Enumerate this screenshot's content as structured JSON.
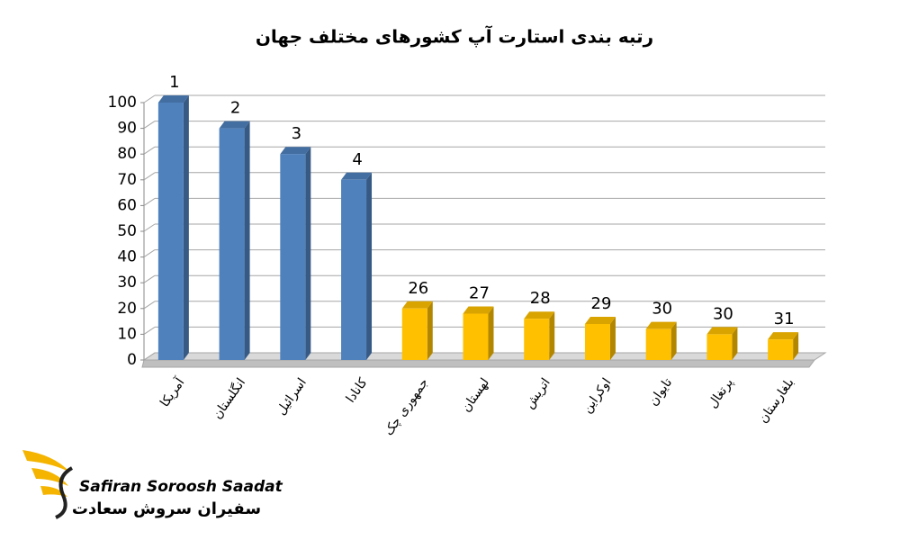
{
  "chart_data": {
    "type": "bar3d",
    "title": "رتبه بندی استارت آپ کشورهای مختلف جهان",
    "categories": [
      "آمریکا",
      "انگلستان",
      "اسرائیل",
      "کانادا",
      "جمهوری چک",
      "لهستان",
      "اتریش",
      "اوکراین",
      "تایوان",
      "پرتغال",
      "بلغارستان"
    ],
    "values": [
      100,
      90,
      80,
      70,
      20,
      18,
      16,
      14,
      12,
      10,
      8
    ],
    "ranks": [
      1,
      2,
      3,
      4,
      26,
      27,
      28,
      29,
      30,
      30,
      31
    ],
    "colors": [
      "#4f81bd",
      "#4f81bd",
      "#4f81bd",
      "#4f81bd",
      "#ffc000",
      "#ffc000",
      "#ffc000",
      "#ffc000",
      "#ffc000",
      "#ffc000",
      "#ffc000"
    ],
    "ylim": [
      0,
      100
    ],
    "yticks": [
      0,
      10,
      20,
      30,
      40,
      50,
      60,
      70,
      80,
      90,
      100
    ],
    "grid": true
  },
  "logo": {
    "name": "Safiran Soroosh Saadat",
    "name_fa": "سفیران سروش سعادت"
  }
}
